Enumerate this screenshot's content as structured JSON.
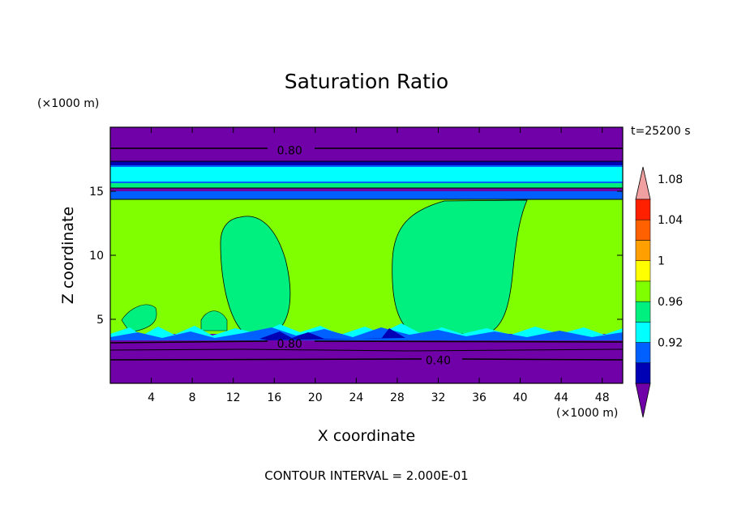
{
  "chart_data": {
    "type": "heatmap",
    "title": "Saturation Ratio",
    "xlabel": "X coordinate",
    "ylabel": "Z coordinate",
    "x_unit": "(×1000 m)",
    "y_unit": "(×1000 m)",
    "time_label": "t=25200 s",
    "footer": "CONTOUR INTERVAL = 2.000E-01",
    "xlim": [
      0,
      50
    ],
    "ylim": [
      0,
      20
    ],
    "x_ticks": [
      4,
      8,
      12,
      16,
      20,
      24,
      28,
      32,
      36,
      40,
      44,
      48
    ],
    "y_ticks": [
      5,
      10,
      15
    ],
    "contour_labels": [
      {
        "text": "0.80",
        "x": 17.5,
        "y": 18.2
      },
      {
        "text": "0.80",
        "x": 17.5,
        "y": 3.1
      },
      {
        "text": "0.40",
        "x": 32.0,
        "y": 1.8
      }
    ],
    "colorbar": {
      "levels": [
        "0.92",
        "0.96",
        "1",
        "1.04",
        "1.08"
      ],
      "colors": [
        "#7000a8",
        "#0000b4",
        "#0060ff",
        "#00ffff",
        "#00f080",
        "#80ff00",
        "#ffff00",
        "#ffa000",
        "#ff6000",
        "#ff2000",
        "#f0a0a0"
      ]
    }
  }
}
